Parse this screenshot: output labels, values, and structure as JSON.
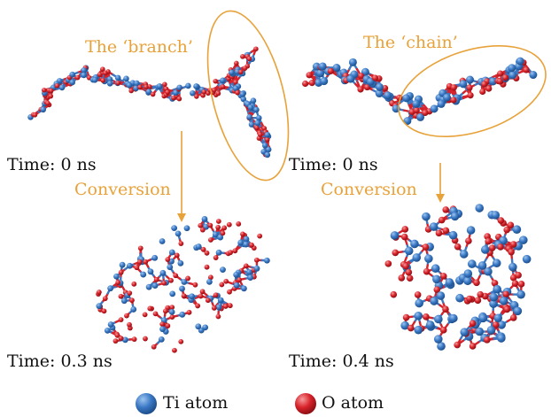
{
  "labels": {
    "branch": "The ‘branch’",
    "chain": "The ‘chain’",
    "time_left_top": "Time: 0 ns",
    "time_right_top": "Time: 0 ns",
    "conversion_left": "Conversion",
    "conversion_right": "Conversion",
    "time_left_bottom": "Time: 0.3 ns",
    "time_right_bottom": "Time: 0.4 ns"
  },
  "legend": {
    "ti": "Ti atom",
    "o": "O atom"
  },
  "colors": {
    "ti": "#3a78c4",
    "o": "#d8222a",
    "highlight": "#e8a23a",
    "text": "#111111"
  }
}
